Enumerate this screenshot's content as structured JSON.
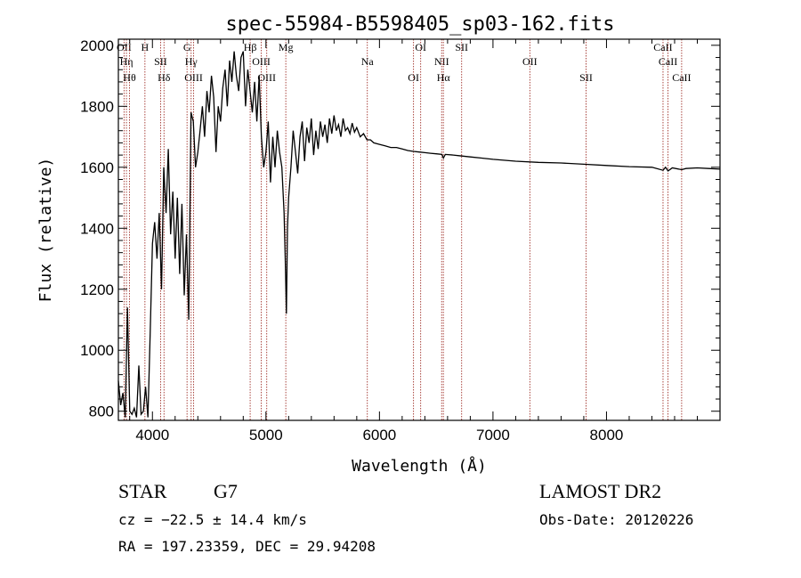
{
  "chart_data": {
    "type": "line",
    "title": "spec-55984-B5598405_sp03-162.fits",
    "xlabel": "Wavelength (Å)",
    "ylabel": "Flux (relative)",
    "xlim": [
      3700,
      9000
    ],
    "ylim": [
      770,
      2020
    ],
    "xticks": [
      4000,
      5000,
      6000,
      7000,
      8000
    ],
    "yticks": [
      800,
      1000,
      1200,
      1400,
      1600,
      1800,
      2000
    ],
    "grid": false,
    "series": [
      {
        "x": [
          3700,
          3720,
          3740,
          3760,
          3780,
          3800,
          3820,
          3840,
          3860,
          3880,
          3900,
          3920,
          3940,
          3960,
          3980,
          4000,
          4020,
          4040,
          4060,
          4080,
          4100,
          4120,
          4140,
          4160,
          4180,
          4200,
          4220,
          4240,
          4260,
          4280,
          4300,
          4320,
          4340,
          4360,
          4380,
          4400,
          4420,
          4440,
          4460,
          4480,
          4500,
          4520,
          4540,
          4560,
          4580,
          4600,
          4620,
          4640,
          4660,
          4680,
          4700,
          4720,
          4740,
          4760,
          4780,
          4800,
          4820,
          4840,
          4860,
          4880,
          4900,
          4920,
          4940,
          4960,
          4980,
          5000,
          5020,
          5040,
          5060,
          5080,
          5100,
          5120,
          5140,
          5160,
          5170,
          5180,
          5190,
          5200,
          5220,
          5240,
          5260,
          5280,
          5300,
          5320,
          5340,
          5360,
          5380,
          5400,
          5420,
          5440,
          5460,
          5480,
          5500,
          5520,
          5540,
          5560,
          5580,
          5600,
          5620,
          5640,
          5660,
          5680,
          5700,
          5720,
          5740,
          5760,
          5780,
          5800,
          5830,
          5860,
          5890,
          5920,
          5950,
          6000,
          6050,
          6100,
          6150,
          6200,
          6250,
          6300,
          6350,
          6400,
          6450,
          6500,
          6550,
          6563,
          6580,
          6650,
          6700,
          6800,
          6900,
          7000,
          7200,
          7400,
          7600,
          7800,
          8000,
          8200,
          8400,
          8498,
          8520,
          8542,
          8580,
          8662,
          8700,
          8800,
          8900,
          9000
        ],
        "y": [
          900,
          820,
          860,
          780,
          1140,
          800,
          790,
          810,
          780,
          950,
          790,
          800,
          880,
          780,
          1050,
          1350,
          1420,
          1300,
          1450,
          1200,
          1600,
          1450,
          1660,
          1380,
          1520,
          1300,
          1500,
          1250,
          1480,
          1180,
          1380,
          1100,
          1780,
          1750,
          1600,
          1650,
          1720,
          1800,
          1700,
          1850,
          1780,
          1900,
          1830,
          1650,
          1800,
          1750,
          1860,
          1920,
          1800,
          1950,
          1880,
          1980,
          1900,
          1850,
          1960,
          1980,
          1800,
          1920,
          1850,
          1780,
          1880,
          1750,
          1900,
          1700,
          1600,
          1650,
          1750,
          1550,
          1700,
          1600,
          1720,
          1650,
          1600,
          1450,
          1300,
          1120,
          1400,
          1500,
          1600,
          1720,
          1650,
          1580,
          1700,
          1750,
          1620,
          1730,
          1680,
          1760,
          1640,
          1720,
          1660,
          1750,
          1700,
          1740,
          1680,
          1760,
          1710,
          1770,
          1720,
          1740,
          1700,
          1760,
          1720,
          1730,
          1710,
          1745,
          1715,
          1730,
          1700,
          1710,
          1690,
          1690,
          1680,
          1675,
          1670,
          1665,
          1665,
          1660,
          1655,
          1652,
          1650,
          1648,
          1646,
          1644,
          1642,
          1630,
          1642,
          1640,
          1638,
          1634,
          1630,
          1626,
          1620,
          1616,
          1614,
          1610,
          1606,
          1602,
          1600,
          1590,
          1600,
          1588,
          1598,
          1592,
          1596,
          1598,
          1596,
          1594
        ]
      }
    ],
    "lines": [
      {
        "x": 3750,
        "label": "OII"
      },
      {
        "x": 3771,
        "label": "Hη"
      },
      {
        "x": 3798,
        "label": "Hθ"
      },
      {
        "x": 3934,
        "label": "H"
      },
      {
        "x": 4072,
        "label": "SII"
      },
      {
        "x": 4102,
        "label": "Hδ"
      },
      {
        "x": 4305,
        "label": "G"
      },
      {
        "x": 4341,
        "label": "Hγ"
      },
      {
        "x": 4363,
        "label": "OIII"
      },
      {
        "x": 4861,
        "label": "Hβ"
      },
      {
        "x": 4959,
        "label": "OIII"
      },
      {
        "x": 5007,
        "label": "OIII"
      },
      {
        "x": 5175,
        "label": "Mg"
      },
      {
        "x": 5893,
        "label": "Na"
      },
      {
        "x": 6300,
        "label": "OI"
      },
      {
        "x": 6363,
        "label": "OI"
      },
      {
        "x": 6548,
        "label": "NII"
      },
      {
        "x": 6563,
        "label": "Hα"
      },
      {
        "x": 6724,
        "label": "SII"
      },
      {
        "x": 7325,
        "label": "OII"
      },
      {
        "x": 7820,
        "label": "SII"
      },
      {
        "x": 8498,
        "label": "CaII"
      },
      {
        "x": 8542,
        "label": "CaII"
      },
      {
        "x": 8662,
        "label": "CaII"
      }
    ],
    "colors": {
      "spectrum": "#000000",
      "line_markers": "#a0312a"
    }
  },
  "info": {
    "class": "STAR",
    "subclass": "G7",
    "survey": "LAMOST DR2",
    "cz": "cz = −22.5 ± 14.4 km/s",
    "obs_date": "Obs-Date: 20120226",
    "coords": "RA = 197.23359, DEC =  29.94208"
  }
}
